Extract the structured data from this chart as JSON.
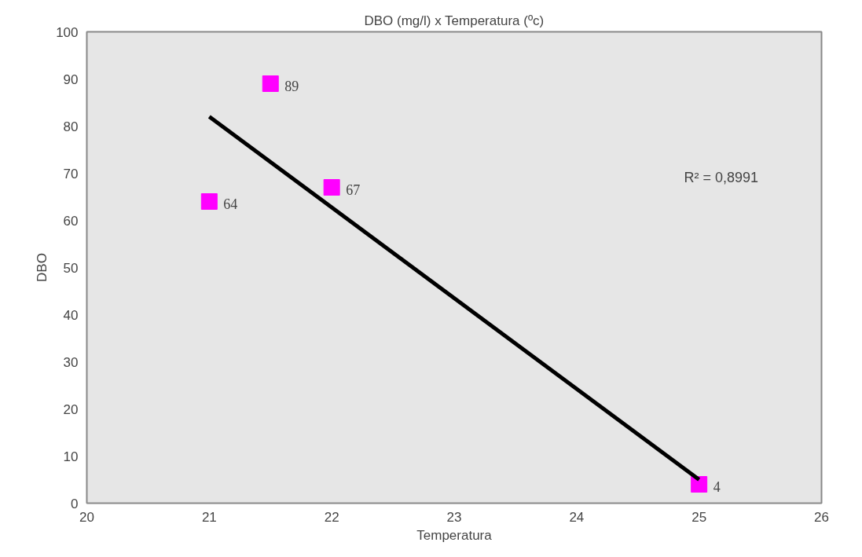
{
  "chart_data": {
    "type": "scatter",
    "title": "DBO (mg/l) x Temperatura (ºc)",
    "xlabel": "Temperatura",
    "ylabel": "DBO",
    "series": [
      {
        "color": "#ff00ff",
        "marker": "square",
        "x": [
          21,
          21.5,
          22,
          25
        ],
        "values": [
          64,
          89,
          67,
          4
        ],
        "value_labels": [
          "64",
          "89",
          "67",
          "4"
        ]
      },
      {
        "type": "line",
        "color": "#000000",
        "x": [
          21,
          25
        ],
        "values": [
          82,
          5
        ]
      }
    ],
    "annotations": [
      "R² = 0,8991"
    ],
    "xlim": [
      20,
      26
    ],
    "xticks": [
      20,
      21,
      22,
      23,
      24,
      25,
      26
    ],
    "ylim": [
      0,
      100
    ],
    "yticks": [
      0,
      10,
      20,
      30,
      40,
      50,
      60,
      70,
      80,
      90,
      100
    ],
    "grid": false
  }
}
